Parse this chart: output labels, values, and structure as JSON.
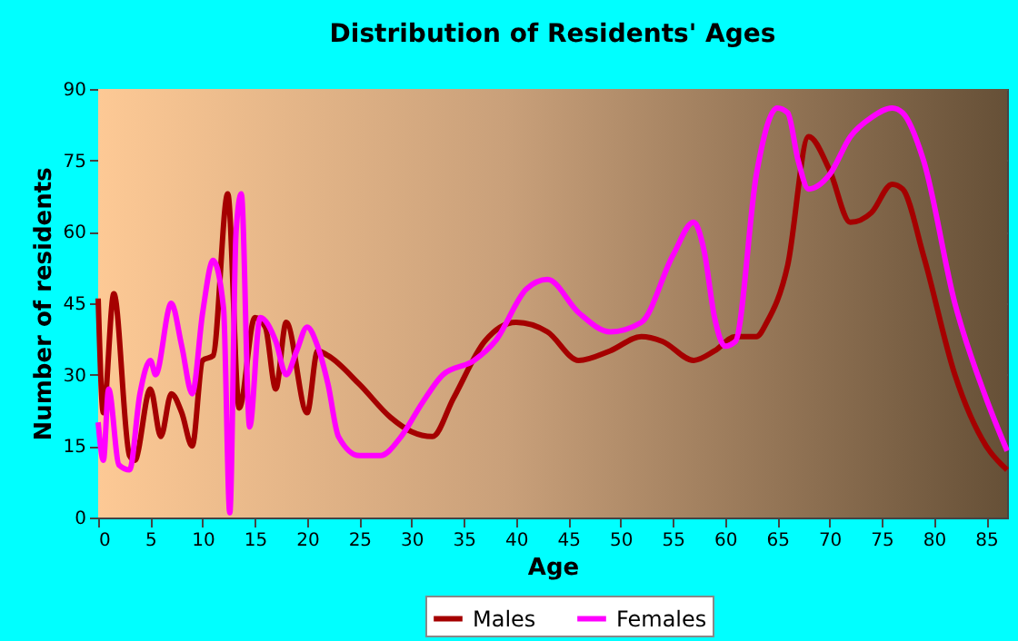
{
  "chart_data": {
    "type": "line",
    "title": "Distribution of Residents' Ages",
    "xlabel": "Age",
    "ylabel": "Number of residents",
    "xlim": [
      0,
      87
    ],
    "xticks": [
      0,
      5,
      10,
      15,
      20,
      25,
      30,
      35,
      40,
      45,
      50,
      55,
      60,
      65,
      70,
      75,
      80,
      85
    ],
    "ylim": [
      0,
      90
    ],
    "yticks": [
      0,
      15,
      30,
      45,
      60,
      75,
      90
    ],
    "grid": true,
    "legend": "bottom",
    "marker": "none",
    "line_style": "solid",
    "series": [
      {
        "name": "Males",
        "color": "#a50000",
        "x": [
          0,
          0.5,
          1.5,
          3,
          3.5,
          5,
          6,
          7,
          8,
          9,
          10,
          11,
          12.4,
          13.5,
          15,
          16,
          17,
          18,
          20,
          21,
          22,
          25,
          28,
          30,
          32,
          34,
          37,
          40,
          43,
          46,
          49,
          52,
          54,
          57,
          59,
          61,
          63,
          64,
          66,
          68,
          70,
          72,
          74,
          76,
          77,
          79,
          82,
          85,
          87
        ],
        "values": [
          46,
          22,
          47,
          13,
          12,
          27,
          17,
          26,
          22,
          15,
          33,
          34,
          68,
          23,
          42,
          40,
          27,
          41,
          22,
          35,
          34,
          28,
          21,
          18,
          17,
          25,
          37,
          41,
          39,
          33,
          35,
          38,
          37,
          33,
          35,
          38,
          38,
          41,
          53,
          80,
          73,
          62,
          64,
          70,
          69,
          55,
          30,
          15,
          10
        ]
      },
      {
        "name": "Females",
        "color": "#ff00ff",
        "x": [
          0,
          0.5,
          1,
          2,
          3,
          4,
          5,
          5.5,
          7,
          8,
          9,
          10,
          11,
          12,
          12.6,
          13.2,
          13.7,
          14.5,
          15.5,
          17,
          18,
          19,
          20,
          21,
          22,
          23,
          25,
          27,
          29,
          31,
          33,
          36,
          38,
          41,
          43,
          46,
          49,
          52,
          55,
          57,
          58,
          59,
          60,
          61,
          63,
          65,
          66,
          67,
          68,
          70,
          72,
          74,
          76,
          77,
          79,
          82,
          85,
          87
        ],
        "values": [
          20,
          12,
          27,
          11,
          10,
          26,
          33,
          30,
          45,
          36,
          26,
          43,
          54,
          44,
          1,
          60,
          68,
          19,
          42,
          37,
          30,
          35,
          40,
          36,
          28,
          17,
          13,
          13,
          17,
          24,
          30,
          33,
          37,
          48,
          50,
          43,
          39,
          41,
          55,
          62,
          56,
          42,
          36,
          37,
          72,
          86,
          85,
          75,
          69,
          72,
          80,
          84,
          86,
          85,
          75,
          45,
          25,
          14
        ]
      }
    ]
  }
}
